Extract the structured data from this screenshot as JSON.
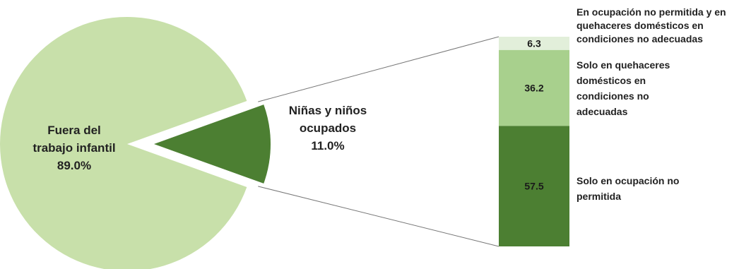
{
  "colors": {
    "pie_main": "#c8e0aa",
    "pie_slice": "#4c7f32",
    "stack_bottom": "#4c7f32",
    "stack_middle": "#a8d08d",
    "stack_top": "#e2efda",
    "connector": "#777777"
  },
  "chart_data": [
    {
      "type": "pie",
      "slices": [
        {
          "label_lines": [
            "Fuera del",
            "trabajo infantil",
            "89.0%"
          ],
          "value": 89.0
        },
        {
          "label_lines": [
            "Niñas y niños",
            "ocupados",
            "11.0%"
          ],
          "value": 11.0
        }
      ]
    },
    {
      "type": "bar",
      "stacked": true,
      "unit": "%",
      "segments": [
        {
          "value": 57.5,
          "value_label": "57.5",
          "label_lines": [
            "Solo en ocupación no",
            "permitida"
          ]
        },
        {
          "value": 36.2,
          "value_label": "36.2",
          "label_lines": [
            "Solo en quehaceres",
            "domésticos en",
            "condiciones no",
            "adecuadas"
          ]
        },
        {
          "value": 6.3,
          "value_label": "6.3",
          "label_lines": [
            "En ocupación no permitida y en",
            "quehaceres domésticos en",
            "condiciones no adecuadas"
          ]
        }
      ]
    }
  ]
}
